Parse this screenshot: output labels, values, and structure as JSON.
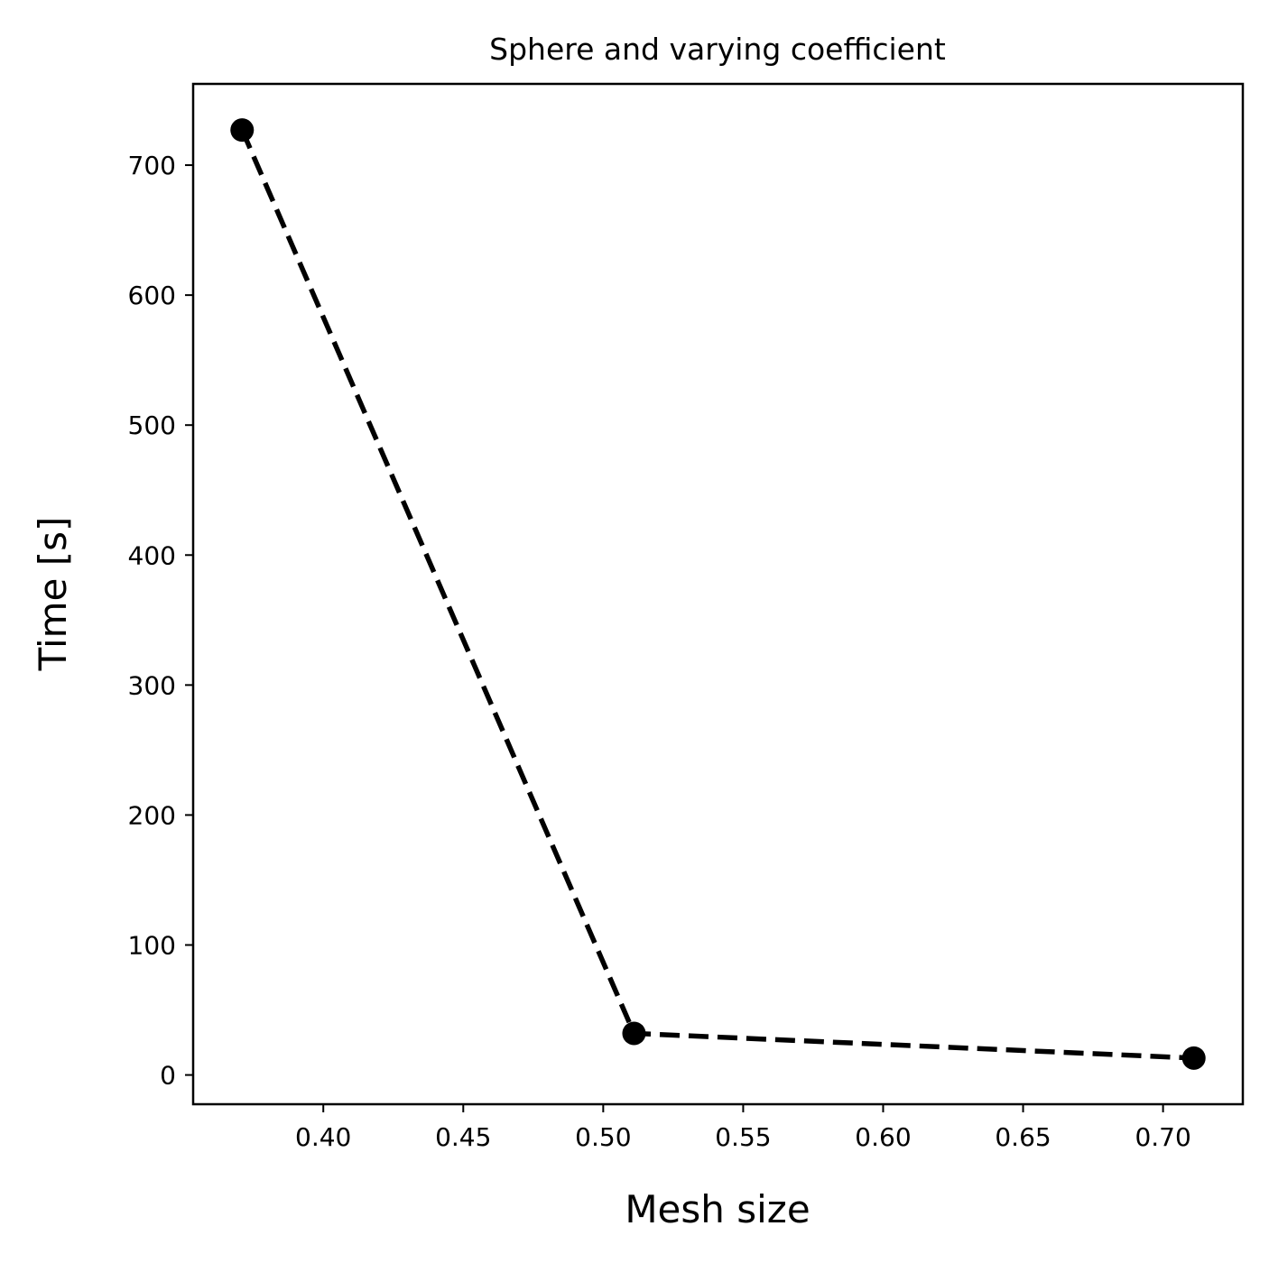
{
  "chart_data": {
    "type": "line",
    "title": "Sphere and varying coefficient",
    "xlabel": "Mesh size",
    "ylabel": "Time [s]",
    "x": [
      0.371,
      0.511,
      0.711
    ],
    "series": [
      {
        "values": [
          727,
          32,
          13
        ],
        "color": "#000000",
        "line_style": "dashed",
        "marker": "circle"
      }
    ],
    "xlim": [
      0.3535,
      0.7285
    ],
    "ylim": [
      -22.5,
      762.5
    ],
    "xticks": [
      0.4,
      0.45,
      0.5,
      0.55,
      0.6,
      0.65,
      0.7
    ],
    "xtick_labels": [
      "0.40",
      "0.45",
      "0.50",
      "0.55",
      "0.60",
      "0.65",
      "0.70"
    ],
    "yticks": [
      0,
      100,
      200,
      300,
      400,
      500,
      600,
      700
    ],
    "ytick_labels": [
      "0",
      "100",
      "200",
      "300",
      "400",
      "500",
      "600",
      "700"
    ],
    "grid": false,
    "legend": "none"
  }
}
